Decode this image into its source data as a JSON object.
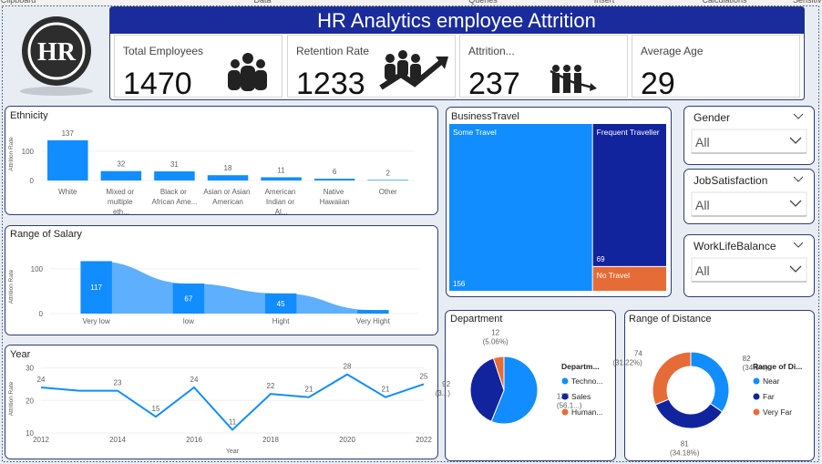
{
  "ribbon": [
    "Clipboard",
    "Data",
    "Queries",
    "Insert",
    "Calculations",
    "Sensitivity"
  ],
  "logo": "HR",
  "header": {
    "title": "HR Analytics employee Attrition"
  },
  "kpis": [
    {
      "label": "Total Employees",
      "value": 1470
    },
    {
      "label": "Retention Rate",
      "value": 1233
    },
    {
      "label": "Attrition...",
      "value": 237
    },
    {
      "label": "Average Age",
      "value": 29
    }
  ],
  "slicers": [
    {
      "label": "Gender",
      "value": "All"
    },
    {
      "label": "JobSatisfaction",
      "value": "All"
    },
    {
      "label": "WorkLifeBalance",
      "value": "All"
    }
  ],
  "chart_data": [
    {
      "type": "bar",
      "title": "Ethnicity",
      "y_label": "Attrition Rate",
      "categories": [
        "White",
        "Mixed or multiple eth...",
        "Black or African Ame...",
        "Asian or Asian American",
        "American Indian or Al...",
        "Native Hawaiian",
        "Other"
      ],
      "values": [
        137,
        32,
        31,
        18,
        11,
        6,
        2
      ],
      "color": "#118dff",
      "ylim": [
        0,
        180
      ],
      "yticks": [
        0,
        100
      ],
      "grid": true
    },
    {
      "type": "ribbon",
      "title": "Range of Salary",
      "y_label": "Attrition Rate",
      "categories": [
        "Very low",
        "low",
        "Hight",
        "Very Hight"
      ],
      "values": [
        117,
        67,
        45,
        8
      ],
      "value_labels": [
        "117",
        "67",
        "45",
        null
      ],
      "color": "#118dff",
      "ribbon_color": "#5eb0ff",
      "ylim": [
        0,
        120
      ],
      "yticks": [
        0,
        100
      ],
      "grid": true
    },
    {
      "type": "line",
      "title": "Year",
      "x_label": "Year",
      "y_label": "Attrition Rate",
      "x": [
        2012,
        2013,
        2014,
        2015,
        2016,
        2017,
        2018,
        2019,
        2020,
        2021,
        2022
      ],
      "values": [
        24,
        23,
        23,
        15,
        24,
        11,
        22,
        21,
        28,
        21,
        25
      ],
      "value_labels": [
        "24",
        null,
        "23",
        "15",
        "24",
        "11",
        "22",
        "21",
        "28",
        "21",
        "25"
      ],
      "color": "#118dff",
      "xlim": [
        2012,
        2022
      ],
      "xticks": [
        2012,
        2014,
        2016,
        2018,
        2020,
        2022
      ],
      "ylim": [
        10,
        31
      ],
      "yticks": [
        10,
        20,
        30
      ],
      "grid": true
    },
    {
      "type": "treemap",
      "title": "BusinessTravel",
      "categories": [
        "Some Travel",
        "Frequent Traveller",
        "No Travel"
      ],
      "values": [
        156,
        69,
        12
      ],
      "value_labels": [
        "156",
        "69",
        null
      ],
      "colors": [
        "#118dff",
        "#12239e",
        "#e66c37"
      ]
    },
    {
      "type": "pie",
      "title": "Department",
      "legend_title": "Departm...",
      "categories": [
        "Techno...",
        "Sales",
        "Human..."
      ],
      "values": [
        133,
        92,
        12
      ],
      "percent_labels": [
        "(56.1...)",
        "(3...)",
        "(5.06%)"
      ],
      "colors": [
        "#118dff",
        "#12239e",
        "#e66c37"
      ]
    },
    {
      "type": "donut",
      "title": "Range of Distance",
      "legend_title": "Range of Di...",
      "categories": [
        "Near",
        "Far",
        "Very Far"
      ],
      "values": [
        82,
        81,
        74
      ],
      "percent_labels": [
        "(34.6%)",
        "(34.18%)",
        "(31.22%)"
      ],
      "colors": [
        "#118dff",
        "#12239e",
        "#e66c37"
      ]
    }
  ]
}
